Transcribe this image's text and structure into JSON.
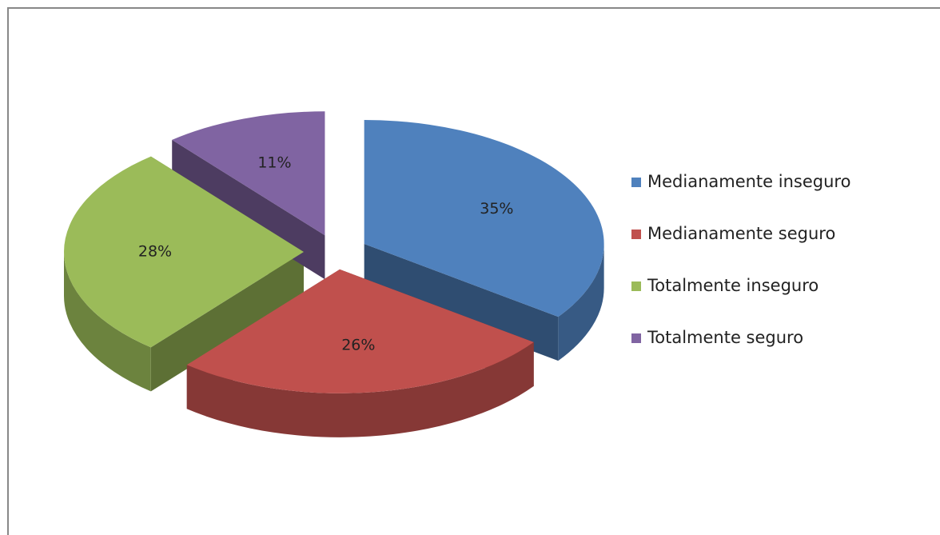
{
  "chart_data": {
    "type": "pie",
    "categories": [
      "Medianamente inseguro",
      "Medianamente seguro",
      "Totalmente inseguro",
      "Totalmente seguro"
    ],
    "values": [
      35,
      26,
      28,
      11
    ],
    "value_labels": [
      "35%",
      "26%",
      "28%",
      "11%"
    ],
    "colors": [
      "#4f81bd",
      "#c0504d",
      "#9bbb59",
      "#8064a2"
    ],
    "legend": "right"
  }
}
